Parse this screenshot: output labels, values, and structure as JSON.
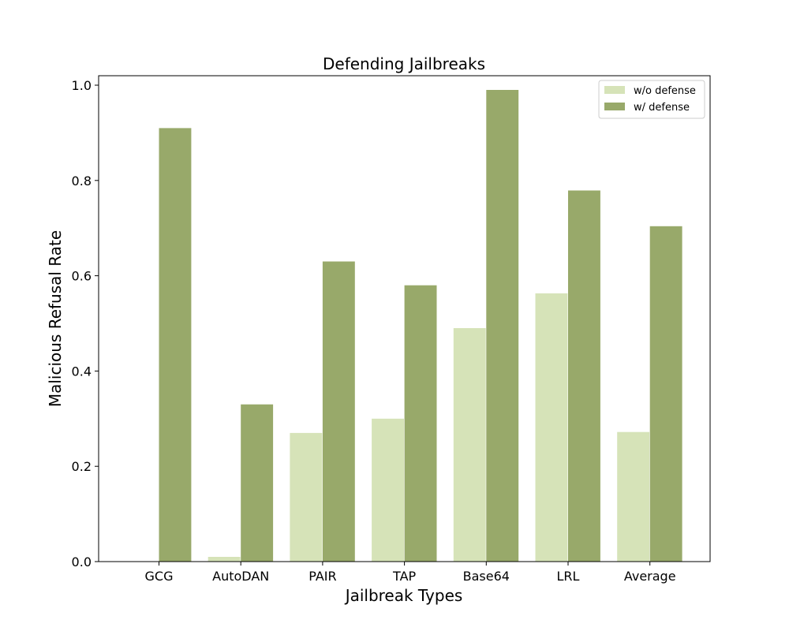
{
  "chart_data": {
    "type": "bar",
    "title": "Defending Jailbreaks",
    "xlabel": "Jailbreak Types",
    "ylabel": "Malicious Refusal Rate",
    "categories": [
      "GCG",
      "AutoDAN",
      "PAIR",
      "TAP",
      "Base64",
      "LRL",
      "Average"
    ],
    "series": [
      {
        "name": "w/o defense",
        "color": "#d6e3b8",
        "values": [
          0.0,
          0.01,
          0.27,
          0.3,
          0.49,
          0.563,
          0.272
        ]
      },
      {
        "name": "w/ defense",
        "color": "#98a96a",
        "values": [
          0.91,
          0.33,
          0.63,
          0.58,
          0.99,
          0.779,
          0.704
        ]
      }
    ],
    "ylim": [
      0,
      1.02
    ],
    "yticks": [
      "0.0",
      "0.2",
      "0.4",
      "0.6",
      "0.8",
      "1.0"
    ],
    "grid": false,
    "legend_position": "top-right"
  }
}
